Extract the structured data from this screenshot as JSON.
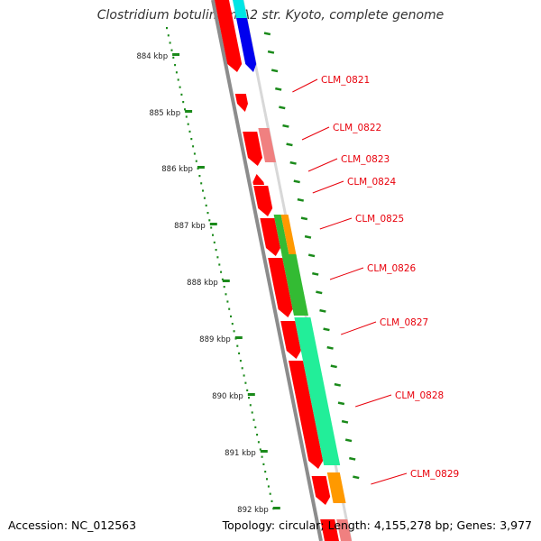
{
  "title": "Clostridium botulinum A2 str. Kyoto, complete genome",
  "footer": {
    "accession": "Accession: NC_012563",
    "summary": "Topology: circular; Length: 4,155,278 bp; Genes: 3,977"
  },
  "ruler": {
    "labels": [
      "884 kbp",
      "885 kbp",
      "886 kbp",
      "887 kbp",
      "888 kbp",
      "889 kbp",
      "890 kbp",
      "891 kbp",
      "892 kbp"
    ],
    "color": "#1a8a1a"
  },
  "genes": [
    {
      "label": "CLM_0821",
      "color": "#e8000b"
    },
    {
      "label": "CLM_0822",
      "color": "#e8000b"
    },
    {
      "label": "CLM_0823",
      "color": "#e8000b"
    },
    {
      "label": "CLM_0824",
      "color": "#e8000b"
    },
    {
      "label": "CLM_0825",
      "color": "#e8000b"
    },
    {
      "label": "CLM_0826",
      "color": "#e8000b"
    },
    {
      "label": "CLM_0827",
      "color": "#e8000b"
    },
    {
      "label": "CLM_0828",
      "color": "#e8000b"
    },
    {
      "label": "CLM_0829",
      "color": "#e8000b"
    }
  ],
  "colors": {
    "cds": "#ff0000",
    "cds_pink": "#f08080",
    "cog_blue": "#0000ee",
    "cog_cyan": "#00e5e5",
    "cog_orange": "#ff9900",
    "cog_green": "#33bb33",
    "cog_teal": "#22ee99",
    "backbone": "#8c8c8c",
    "label_line": "#e8000b"
  }
}
